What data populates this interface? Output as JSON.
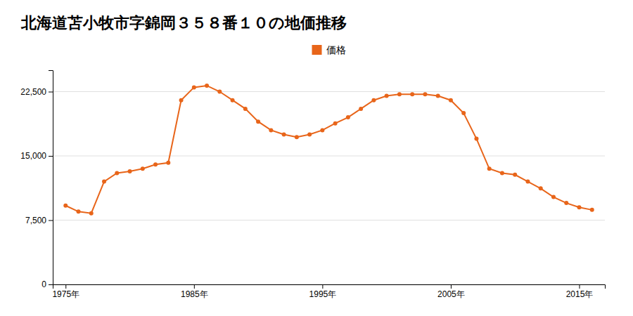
{
  "chart_data": {
    "type": "line",
    "title": "北海道苫小牧市字錦岡３５８番１０の地価推移",
    "x": [
      1975,
      1976,
      1977,
      1978,
      1979,
      1980,
      1981,
      1982,
      1983,
      1984,
      1985,
      1986,
      1987,
      1988,
      1989,
      1990,
      1991,
      1992,
      1993,
      1994,
      1995,
      1996,
      1997,
      1998,
      1999,
      2000,
      2001,
      2002,
      2003,
      2004,
      2005,
      2006,
      2007,
      2008,
      2009,
      2010,
      2011,
      2012,
      2013,
      2014,
      2015,
      2016
    ],
    "series": [
      {
        "name": "価格",
        "color": "#e8651a",
        "marker": "circle",
        "values": [
          9200,
          8500,
          8300,
          12000,
          13000,
          13200,
          13500,
          14000,
          14200,
          21500,
          23000,
          23200,
          22500,
          21500,
          20500,
          19000,
          18000,
          17500,
          17200,
          17500,
          18000,
          18800,
          19500,
          20500,
          21500,
          22000,
          22200,
          22200,
          22200,
          22000,
          21500,
          20000,
          17000,
          13500,
          13000,
          12800,
          12000,
          11200,
          10200,
          9500,
          9000,
          8700
        ]
      }
    ],
    "xlim": [
      1974,
      2017
    ],
    "xticks": [
      {
        "value": 1975,
        "label": "1975年"
      },
      {
        "value": 1985,
        "label": "1985年"
      },
      {
        "value": 1995,
        "label": "1995年"
      },
      {
        "value": 2005,
        "label": "2005年"
      },
      {
        "value": 2015,
        "label": "2015年"
      }
    ],
    "ylim": [
      0,
      25000
    ],
    "yticks": [
      0,
      {
        "value": 7500,
        "label": "7,500"
      },
      {
        "value": 15000,
        "label": "15,000"
      },
      {
        "value": 22500,
        "label": "22,500"
      }
    ],
    "grid": true,
    "legend": "top"
  }
}
